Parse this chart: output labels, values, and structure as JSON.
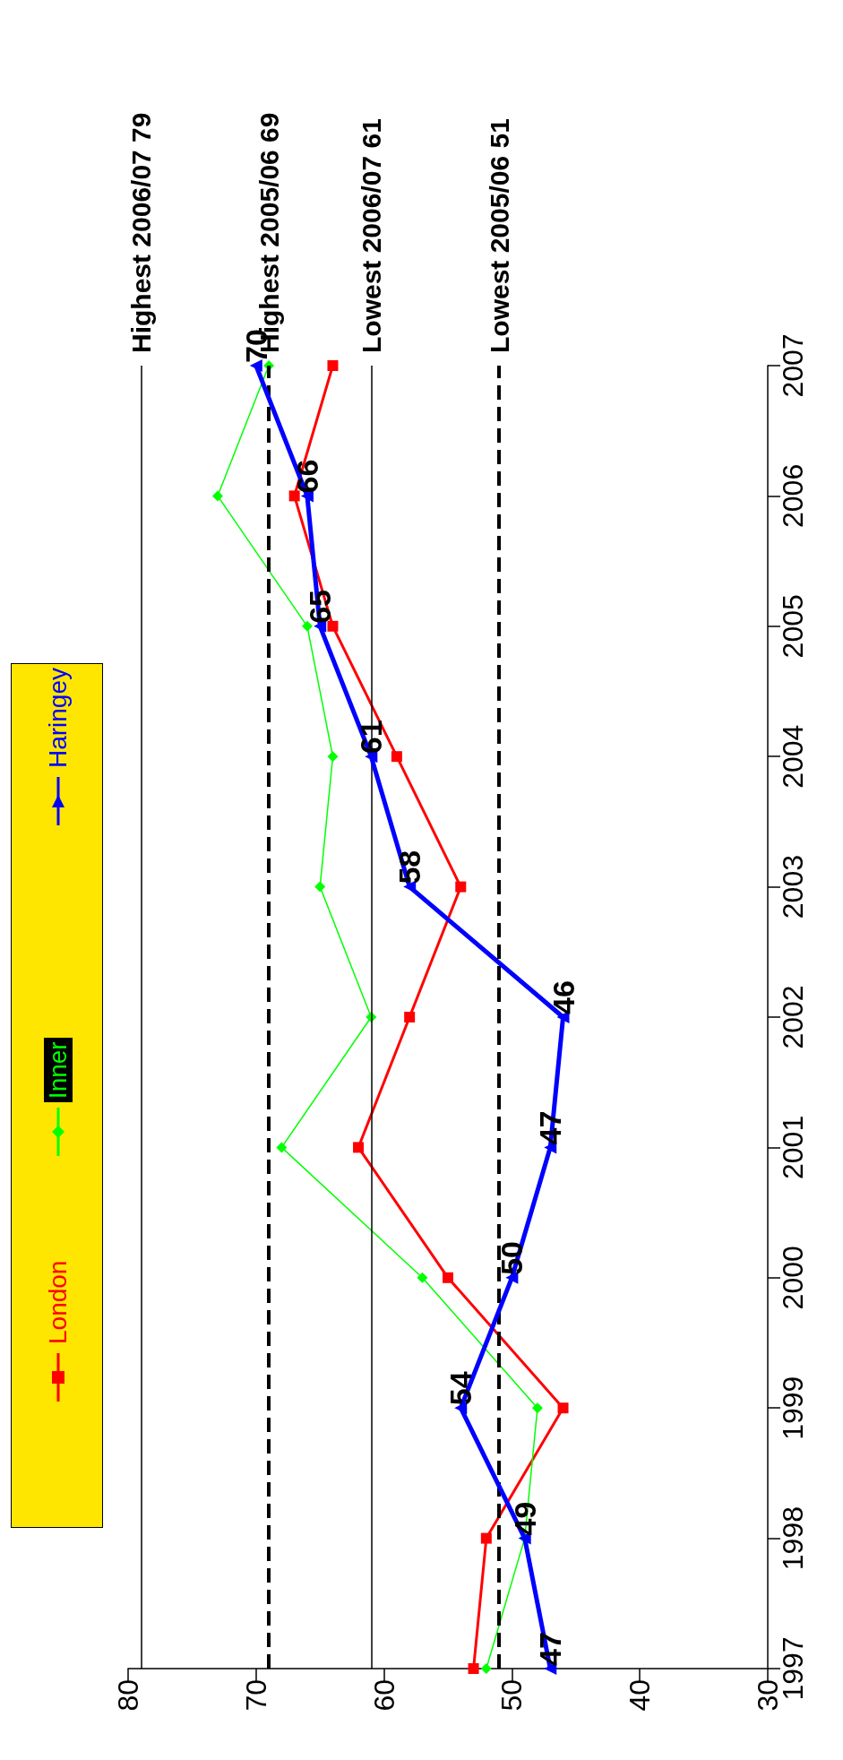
{
  "chart_data": {
    "type": "line",
    "orientation": "horizontal",
    "x": [
      1997,
      1998,
      1999,
      2000,
      2001,
      2002,
      2003,
      2004,
      2005,
      2006,
      2007
    ],
    "series": [
      {
        "name": "London",
        "color": "#ff0000",
        "marker": "square",
        "values": [
          53,
          52,
          46,
          55,
          62,
          58,
          54,
          59,
          64,
          67,
          64
        ]
      },
      {
        "name": "Inner",
        "color": "#00ff00",
        "marker": "diamond",
        "values": [
          52,
          49,
          48,
          57,
          68,
          61,
          65,
          64,
          66,
          73,
          69
        ]
      },
      {
        "name": "Haringey",
        "color": "#0000ff",
        "marker": "triangle",
        "values": [
          47,
          49,
          54,
          50,
          47,
          46,
          58,
          61,
          65,
          66,
          70
        ],
        "value_labels": [
          "47",
          "49",
          "54",
          "50",
          "47",
          "46",
          "58",
          "61",
          "65",
          "66",
          "70"
        ]
      }
    ],
    "xlim": [
      80,
      30
    ],
    "xticks": [
      80,
      70,
      60,
      50,
      40,
      30
    ],
    "ylim": [
      1997,
      2007
    ],
    "yticks": [
      1997,
      1998,
      1999,
      2000,
      2001,
      2002,
      2003,
      2004,
      2005,
      2006,
      2007
    ],
    "ref_lines": [
      {
        "axis": "x",
        "value": 79,
        "label": "Highest 2006/07 79",
        "line_style": "solid"
      },
      {
        "axis": "x",
        "value": 69,
        "label": "Highest 2005/06 69",
        "line_style": "dashed"
      },
      {
        "axis": "x",
        "value": 61,
        "label": "Lowest 2006/07 61",
        "line_style": "solid"
      },
      {
        "axis": "x",
        "value": 51,
        "label": "Lowest 2005/06 51",
        "line_style": "dashed"
      }
    ],
    "legend": "left"
  }
}
